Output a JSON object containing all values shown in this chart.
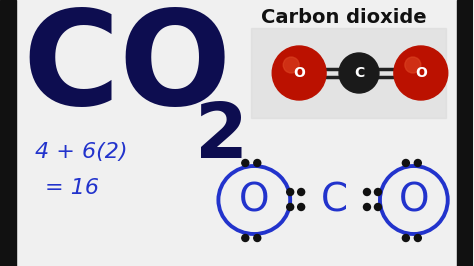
{
  "bg_color": "#f0f0f0",
  "bar_color": "#111111",
  "formula_color": "#0d0d50",
  "math_color": "#2233cc",
  "lewis_color": "#2233cc",
  "dot_color": "#111111",
  "title_text": "Carbon dioxide",
  "title_color": "#111111",
  "math_line1": "4 + 6(2)",
  "math_line2": "= 16",
  "molecule_C_color": "#1a1a1a",
  "molecule_O_color": "#bb1100",
  "molecule_label_color": "#ffffff",
  "molecule_bond_color": "#cc3333"
}
